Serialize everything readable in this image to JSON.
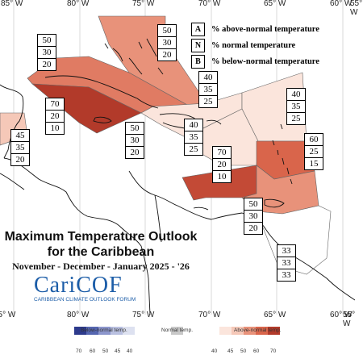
{
  "title": "Maximum Temperature Outlook for the Caribbean",
  "subtitle": "November - December - January 2025 - '26",
  "logo": {
    "name": "CariCOF",
    "tagline": "CARIBBEAN CLIMATE OUTLOOK FORUM"
  },
  "longitudes": [
    "85° W",
    "80° W",
    "75° W",
    "70° W",
    "65° W",
    "60° W",
    "55° W"
  ],
  "key": [
    {
      "letter": "A",
      "text": "% above-normal temperature"
    },
    {
      "letter": "N",
      "text": "% normal temperature"
    },
    {
      "letter": "B",
      "text": "% below-normal temperature"
    }
  ],
  "regions": [
    {
      "name": "bahamas",
      "A": "50",
      "N": "30",
      "B": "20",
      "level": "A50",
      "color": "#e8927a"
    },
    {
      "name": "cuba",
      "A": "50",
      "N": "30",
      "B": "20",
      "level": "A50",
      "color": "#e07b63"
    },
    {
      "name": "jamaica-cayman",
      "A": "70",
      "N": "20",
      "B": "10",
      "level": "A70",
      "color": "#b23a2a"
    },
    {
      "name": "belize",
      "A": "45",
      "N": "35",
      "B": "20",
      "level": "A45",
      "color": "#f5c8b8"
    },
    {
      "name": "hispaniola-north",
      "A": "40",
      "N": "35",
      "B": "25",
      "level": "A40",
      "color": "#fbe5dc"
    },
    {
      "name": "hispaniola",
      "A": "40",
      "N": "35",
      "B": "25",
      "level": "A40",
      "color": "#fbe5dc"
    },
    {
      "name": "leeward-atlantic",
      "A": "40",
      "N": "35",
      "B": "25",
      "level": "A40",
      "color": "#fbe5dc"
    },
    {
      "name": "lesser-antilles",
      "A": "60",
      "N": "25",
      "B": "15",
      "level": "A60",
      "color": "#d9654b"
    },
    {
      "name": "caribbean-sea",
      "A": "70",
      "N": "20",
      "B": "10",
      "level": "A70",
      "color": "#c34a36"
    },
    {
      "name": "trinidad",
      "A": "50",
      "N": "30",
      "B": "20",
      "level": "A50",
      "color": "#e8927a"
    },
    {
      "name": "guianas",
      "A": "33",
      "N": "33",
      "B": "33",
      "level": "N",
      "color": "#ffffff"
    }
  ],
  "colorbar": {
    "below_label": "Below-normal temp.",
    "normal_label": "Normal temp.",
    "above_label": "Above-normal temp.",
    "below_ticks": [
      "70",
      "60",
      "50",
      "45",
      "40"
    ],
    "above_ticks": [
      "40",
      "45",
      "50",
      "60",
      "70"
    ],
    "below_colors": [
      "#2d3a8c",
      "#5566b0",
      "#8c96cc",
      "#b9c0e0",
      "#dde1f0"
    ],
    "normal_color": "#c8c8c8",
    "above_colors": [
      "#fbe5dc",
      "#f5c8b8",
      "#e8927a",
      "#d9654b",
      "#b23a2a"
    ]
  }
}
